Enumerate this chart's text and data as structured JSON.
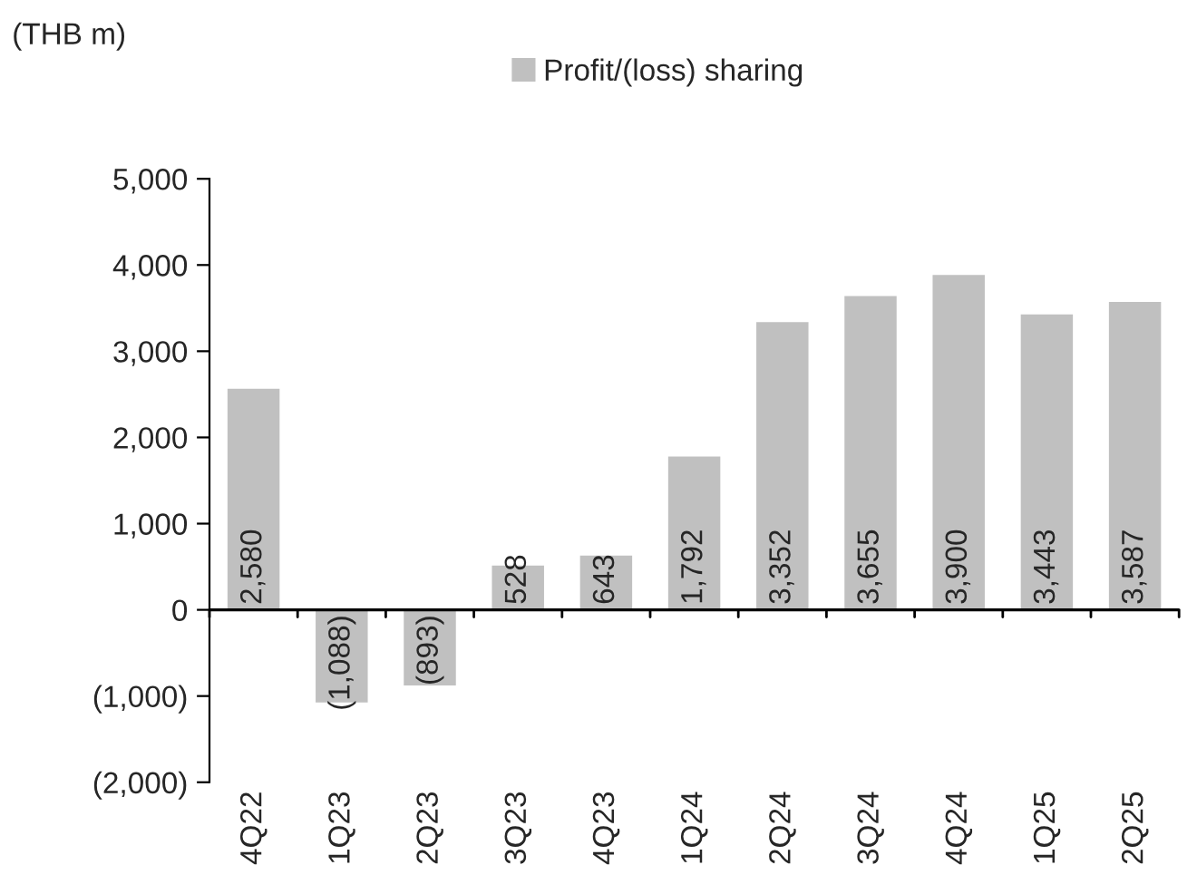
{
  "chart_data": {
    "type": "bar",
    "ylabel": "(THB m)",
    "legend": "top",
    "categories": [
      "4Q22",
      "1Q23",
      "2Q23",
      "3Q23",
      "4Q23",
      "1Q24",
      "2Q24",
      "3Q24",
      "4Q24",
      "1Q25",
      "2Q25"
    ],
    "series": [
      {
        "name": "Profit/(loss) sharing",
        "color": "#c0c0c0",
        "values": [
          2580,
          -1088,
          -893,
          528,
          643,
          1792,
          3352,
          3655,
          3900,
          3443,
          3587
        ],
        "value_labels": [
          "2,580",
          "(1,088)",
          "(893)",
          "528",
          "643",
          "1,792",
          "3,352",
          "3,655",
          "3,900",
          "3,443",
          "3,587"
        ]
      }
    ],
    "ylim": [
      -2000,
      5000
    ],
    "yticks": [
      {
        "value": -2000,
        "label": "(2,000)"
      },
      {
        "value": -1000,
        "label": "(1,000)"
      },
      0,
      {
        "value": 1000,
        "label": "1,000"
      },
      {
        "value": 2000,
        "label": "2,000"
      },
      {
        "value": 3000,
        "label": "3,000"
      },
      {
        "value": 4000,
        "label": "4,000"
      },
      {
        "value": 5000,
        "label": "5,000"
      }
    ]
  }
}
